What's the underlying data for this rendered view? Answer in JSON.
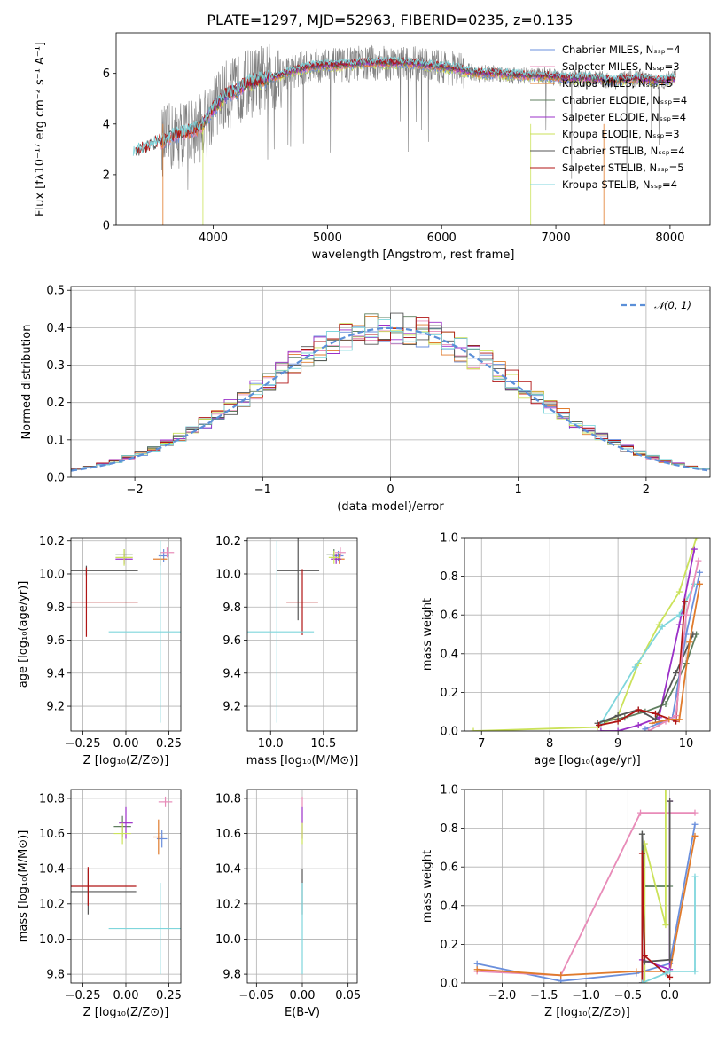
{
  "figure": {
    "title": "PLATE=1297, MJD=52963, FIBERID=0235, z=0.135"
  },
  "colors": {
    "chabrier_miles": "#6a8fdc",
    "salpeter_miles": "#e88bb8",
    "kroupa_miles": "#e07b2c",
    "chabrier_elodie": "#5f7f5f",
    "salpeter_elodie": "#9b30c8",
    "kroupa_elodie": "#cbe25a",
    "chabrier_stelib": "#555555",
    "salpeter_stelib": "#b01515",
    "kroupa_stelib": "#7fd6dc",
    "data": "#808080",
    "normal": "#5b8fd8"
  },
  "chart_data": [
    {
      "id": "spectrum",
      "type": "line",
      "xlabel": "wavelength [Angstrom, rest frame]",
      "ylabel": "Flux [fλ10⁻¹⁷ erg cm⁻² s⁻¹ A⁻¹]",
      "xlim": [
        3150,
        8350
      ],
      "ylim": [
        0,
        7.6
      ],
      "xticks": [
        "4000",
        "5000",
        "6000",
        "7000",
        "8000"
      ],
      "yticks": [
        "0",
        "2",
        "4",
        "6"
      ],
      "legend_position": "right",
      "legend": [
        "Chabrier MILES, Nₛₛₚ=4",
        "Salpeter MILES, Nₛₛₚ=3",
        "Kroupa MILES, Nₛₛₚ=5",
        "Chabrier ELODIE, Nₛₛₚ=4",
        "Salpeter ELODIE, Nₛₛₚ=4",
        "Kroupa ELODIE, Nₛₛₚ=3",
        "Chabrier STELIB, Nₛₛₚ=4",
        "Salpeter STELIB, Nₛₛₚ=5",
        "Kroupa STELIB, Nₛₛₚ=4"
      ],
      "continuum": {
        "x": [
          3300,
          3400,
          3500,
          3600,
          3700,
          3800,
          3900,
          4000,
          4100,
          4200,
          4300,
          4500,
          4700,
          4900,
          5100,
          5300,
          5500,
          5700,
          5900,
          6100,
          6300,
          6500,
          6700,
          6900,
          7100,
          7300,
          7500,
          7700,
          7900,
          8050
        ],
        "y": [
          2.8,
          3.0,
          3.2,
          3.4,
          3.6,
          3.7,
          3.9,
          4.6,
          5.1,
          5.3,
          5.6,
          5.8,
          6.1,
          6.3,
          6.3,
          6.4,
          6.4,
          6.4,
          6.3,
          6.2,
          6.0,
          6.0,
          5.9,
          5.9,
          5.8,
          5.8,
          5.7,
          5.8,
          5.7,
          5.8
        ]
      },
      "data_extent": [
        3550,
        8050
      ]
    },
    {
      "id": "residuals",
      "type": "histogram",
      "xlabel": "(data-model)/error",
      "ylabel": "Normed distribution",
      "xlim": [
        -2.5,
        2.5
      ],
      "ylim": [
        0,
        0.51
      ],
      "xticks": [
        "−2",
        "−1",
        "0",
        "1",
        "2"
      ],
      "yticks": [
        "0.0",
        "0.1",
        "0.2",
        "0.3",
        "0.4",
        "0.5"
      ],
      "legend": [
        "𝒩(0, 1)"
      ],
      "legend_position": "top-right",
      "bin_width": 0.1,
      "normal": {
        "mean": 0,
        "sigma": 1
      }
    },
    {
      "id": "age_vs_Z",
      "type": "scatter",
      "xlabel": "Z [log₁₀(Z/Z⊙)]",
      "ylabel": "age  [log₁₀(age/yr)]",
      "xlim": [
        -0.32,
        0.32
      ],
      "ylim": [
        9.05,
        10.22
      ],
      "xticks": [
        "−0.25",
        "0.00",
        "0.25"
      ],
      "yticks": [
        "9.2",
        "9.4",
        "9.6",
        "9.8",
        "10.0",
        "10.2"
      ],
      "points": [
        {
          "c": "chabrier_miles",
          "x": 0.22,
          "y": 10.11,
          "ex": 0.03,
          "ey": 0.04
        },
        {
          "c": "salpeter_miles",
          "x": 0.24,
          "y": 10.13,
          "ex": 0.04,
          "ey": 0.03
        },
        {
          "c": "kroupa_miles",
          "x": 0.2,
          "y": 10.09,
          "ex": 0.04,
          "ey": 0.04
        },
        {
          "c": "chabrier_elodie",
          "x": -0.01,
          "y": 10.12,
          "ex": 0.05,
          "ey": 0.03
        },
        {
          "c": "salpeter_elodie",
          "x": -0.01,
          "y": 10.09,
          "ex": 0.05,
          "ey": 0.03
        },
        {
          "c": "kroupa_elodie",
          "x": -0.01,
          "y": 10.1,
          "ex": 0.05,
          "ey": 0.05
        },
        {
          "c": "chabrier_stelib",
          "x": -0.23,
          "y": 10.02,
          "ex": 0.3,
          "ey": 0.03
        },
        {
          "c": "salpeter_stelib",
          "x": -0.23,
          "y": 9.83,
          "ex": 0.3,
          "ey": 0.21
        },
        {
          "c": "kroupa_stelib",
          "x": 0.2,
          "y": 9.65,
          "ex": 0.3,
          "ey": 0.55
        }
      ]
    },
    {
      "id": "age_vs_mass",
      "type": "scatter",
      "xlabel": "mass [log₁₀(M/M⊙)]",
      "xlim": [
        9.78,
        10.82
      ],
      "ylim": [
        9.05,
        10.22
      ],
      "xticks": [
        "10.0",
        "10.5"
      ],
      "yticks": [
        "9.2",
        "9.4",
        "9.6",
        "9.8",
        "10.0",
        "10.2"
      ],
      "points": [
        {
          "c": "chabrier_miles",
          "x": 10.64,
          "y": 10.11,
          "ex": 0.05,
          "ey": 0.03
        },
        {
          "c": "salpeter_miles",
          "x": 10.66,
          "y": 10.13,
          "ex": 0.05,
          "ey": 0.03
        },
        {
          "c": "kroupa_miles",
          "x": 10.65,
          "y": 10.09,
          "ex": 0.05,
          "ey": 0.03
        },
        {
          "c": "chabrier_elodie",
          "x": 10.6,
          "y": 10.12,
          "ex": 0.07,
          "ey": 0.03
        },
        {
          "c": "salpeter_elodie",
          "x": 10.62,
          "y": 10.09,
          "ex": 0.05,
          "ey": 0.03
        },
        {
          "c": "kroupa_elodie",
          "x": 10.6,
          "y": 10.1,
          "ex": 0.05,
          "ey": 0.04
        },
        {
          "c": "chabrier_stelib",
          "x": 10.26,
          "y": 10.02,
          "ex": 0.2,
          "ey": 0.3
        },
        {
          "c": "salpeter_stelib",
          "x": 10.3,
          "y": 9.83,
          "ex": 0.15,
          "ey": 0.2
        },
        {
          "c": "kroupa_stelib",
          "x": 10.06,
          "y": 9.65,
          "ex": 0.35,
          "ey": 0.55
        }
      ]
    },
    {
      "id": "massweight_vs_age",
      "type": "line",
      "xlabel": "age  [log₁₀(age/yr)]",
      "ylabel": "mass weight",
      "xlim": [
        6.75,
        10.35
      ],
      "ylim": [
        0,
        1.0
      ],
      "xticks": [
        "7",
        "8",
        "9",
        "10"
      ],
      "yticks": [
        "0.0",
        "0.2",
        "0.4",
        "0.6",
        "0.8",
        "1.0"
      ],
      "series": [
        {
          "c": "kroupa_elodie",
          "x": [
            6.88,
            8.7,
            9.0,
            9.3,
            9.6,
            9.9,
            10.15
          ],
          "y": [
            0.0,
            0.02,
            0.08,
            0.35,
            0.55,
            0.72,
            1.0
          ]
        },
        {
          "c": "salpeter_elodie",
          "x": [
            8.75,
            9.0,
            9.3,
            9.6,
            9.9,
            10.12
          ],
          "y": [
            0.0,
            0.0,
            0.03,
            0.07,
            0.55,
            0.94
          ]
        },
        {
          "c": "chabrier_elodie",
          "x": [
            8.8,
            9.1,
            9.4,
            9.7,
            10.0,
            10.15
          ],
          "y": [
            0.05,
            0.07,
            0.1,
            0.14,
            0.35,
            0.5
          ]
        },
        {
          "c": "kroupa_stelib",
          "x": [
            8.75,
            9.25,
            9.65,
            9.9,
            10.12
          ],
          "y": [
            0.04,
            0.33,
            0.54,
            0.6,
            0.76
          ]
        },
        {
          "c": "chabrier_stelib",
          "x": [
            8.7,
            9.0,
            9.3,
            9.55,
            9.85,
            10.1
          ],
          "y": [
            0.04,
            0.08,
            0.11,
            0.06,
            0.3,
            0.5
          ]
        },
        {
          "c": "salpeter_stelib",
          "x": [
            8.72,
            9.0,
            9.3,
            9.55,
            9.85,
            9.98
          ],
          "y": [
            0.03,
            0.05,
            0.11,
            0.09,
            0.05,
            0.67
          ]
        },
        {
          "c": "chabrier_miles",
          "x": [
            9.4,
            9.6,
            9.8,
            10.0,
            10.2
          ],
          "y": [
            0.01,
            0.04,
            0.07,
            0.5,
            0.82
          ]
        },
        {
          "c": "salpeter_miles",
          "x": [
            9.45,
            9.7,
            9.85,
            10.0,
            10.18
          ],
          "y": [
            0.0,
            0.05,
            0.08,
            0.6,
            0.88
          ]
        },
        {
          "c": "kroupa_miles",
          "x": [
            9.5,
            9.75,
            9.9,
            10.05,
            10.2
          ],
          "y": [
            0.04,
            0.06,
            0.06,
            0.46,
            0.76
          ]
        }
      ]
    },
    {
      "id": "mass_vs_Z",
      "type": "scatter",
      "xlabel": "Z [log₁₀(Z/Z⊙)]",
      "ylabel": "mass [log₁₀(M/M⊙)]",
      "xlim": [
        -0.32,
        0.32
      ],
      "ylim": [
        9.75,
        10.85
      ],
      "xticks": [
        "−0.25",
        "0.00",
        "0.25"
      ],
      "yticks": [
        "9.8",
        "10.0",
        "10.2",
        "10.4",
        "10.6",
        "10.8"
      ],
      "points": [
        {
          "c": "chabrier_miles",
          "x": 0.21,
          "y": 10.57,
          "ex": 0.03,
          "ey": 0.05
        },
        {
          "c": "salpeter_miles",
          "x": 0.23,
          "y": 10.78,
          "ex": 0.04,
          "ey": 0.03
        },
        {
          "c": "kroupa_miles",
          "x": 0.19,
          "y": 10.58,
          "ex": 0.03,
          "ey": 0.1
        },
        {
          "c": "chabrier_elodie",
          "x": -0.02,
          "y": 10.64,
          "ex": 0.05,
          "ey": 0.06
        },
        {
          "c": "salpeter_elodie",
          "x": 0.0,
          "y": 10.66,
          "ex": 0.04,
          "ey": 0.09
        },
        {
          "c": "kroupa_elodie",
          "x": -0.02,
          "y": 10.6,
          "ex": 0.05,
          "ey": 0.06
        },
        {
          "c": "chabrier_stelib",
          "x": -0.22,
          "y": 10.27,
          "ex": 0.28,
          "ey": 0.13
        },
        {
          "c": "salpeter_stelib",
          "x": -0.22,
          "y": 10.3,
          "ex": 0.28,
          "ey": 0.11
        },
        {
          "c": "kroupa_stelib",
          "x": 0.2,
          "y": 10.06,
          "ex": 0.3,
          "ey": 0.26
        }
      ]
    },
    {
      "id": "mass_vs_ebv",
      "type": "scatter",
      "xlabel": "E(B-V)",
      "xlim": [
        -0.06,
        0.06
      ],
      "ylim": [
        9.75,
        10.85
      ],
      "xticks": [
        "−0.05",
        "0.00",
        "0.05"
      ],
      "yticks": [
        "9.8",
        "10.0",
        "10.2",
        "10.4",
        "10.6",
        "10.8"
      ],
      "points": [
        {
          "c": "salpeter_miles",
          "x": 0.0,
          "y": 10.78,
          "ex": 0.0,
          "ey": 0.03
        },
        {
          "c": "salpeter_elodie",
          "x": 0.0,
          "y": 10.66,
          "ex": 0.0,
          "ey": 0.09
        },
        {
          "c": "kroupa_elodie",
          "x": 0.0,
          "y": 10.6,
          "ex": 0.0,
          "ey": 0.06
        },
        {
          "c": "chabrier_stelib",
          "x": 0.0,
          "y": 10.27,
          "ex": 0.0,
          "ey": 0.13
        },
        {
          "c": "kroupa_stelib",
          "x": 0.0,
          "y": 10.06,
          "ex": 0.0,
          "ey": 0.26
        }
      ]
    },
    {
      "id": "massweight_vs_Z",
      "type": "line",
      "xlabel": "Z [log₁₀(Z/Z⊙)]",
      "ylabel": "mass weight",
      "xlim": [
        -2.45,
        0.48
      ],
      "ylim": [
        0,
        1.0
      ],
      "xticks": [
        "−2.0",
        "−1.5",
        "−1.0",
        "−0.5",
        "0.0"
      ],
      "yticks": [
        "0.0",
        "0.2",
        "0.4",
        "0.6",
        "0.8",
        "1.0"
      ],
      "series": [
        {
          "c": "chabrier_miles",
          "x": [
            -2.3,
            -1.3,
            -0.4,
            0.0,
            0.3
          ],
          "y": [
            0.1,
            0.01,
            0.05,
            0.1,
            0.82
          ]
        },
        {
          "c": "salpeter_miles",
          "x": [
            -2.3,
            -1.3,
            -0.35,
            0.3
          ],
          "y": [
            0.06,
            0.04,
            0.88,
            0.88
          ]
        },
        {
          "c": "kroupa_miles",
          "x": [
            -2.3,
            -1.3,
            -0.4,
            0.0,
            0.3
          ],
          "y": [
            0.07,
            0.04,
            0.06,
            0.06,
            0.76
          ]
        },
        {
          "c": "chabrier_elodie",
          "x": [
            -0.33,
            -0.33,
            -0.3,
            0.0
          ],
          "y": [
            0.0,
            0.77,
            0.5,
            0.5
          ]
        },
        {
          "c": "salpeter_elodie",
          "x": [
            -0.33,
            -0.33,
            0.0,
            0.0
          ],
          "y": [
            0.0,
            0.12,
            0.07,
            0.94
          ]
        },
        {
          "c": "kroupa_elodie",
          "x": [
            -0.3,
            -0.3,
            -0.05,
            -0.05
          ],
          "y": [
            0.0,
            0.72,
            0.3,
            1.0
          ]
        },
        {
          "c": "chabrier_stelib",
          "x": [
            -0.33,
            -0.33,
            -0.3,
            0.0,
            0.0
          ],
          "y": [
            0.0,
            0.77,
            0.11,
            0.12,
            0.94
          ]
        },
        {
          "c": "salpeter_stelib",
          "x": [
            -0.33,
            -0.33,
            -0.3,
            0.0
          ],
          "y": [
            0.0,
            0.67,
            0.14,
            0.03
          ]
        },
        {
          "c": "kroupa_stelib",
          "x": [
            -0.33,
            -0.05,
            0.0,
            0.3,
            0.3
          ],
          "y": [
            0.0,
            0.05,
            0.06,
            0.06,
            0.55
          ]
        }
      ]
    }
  ]
}
